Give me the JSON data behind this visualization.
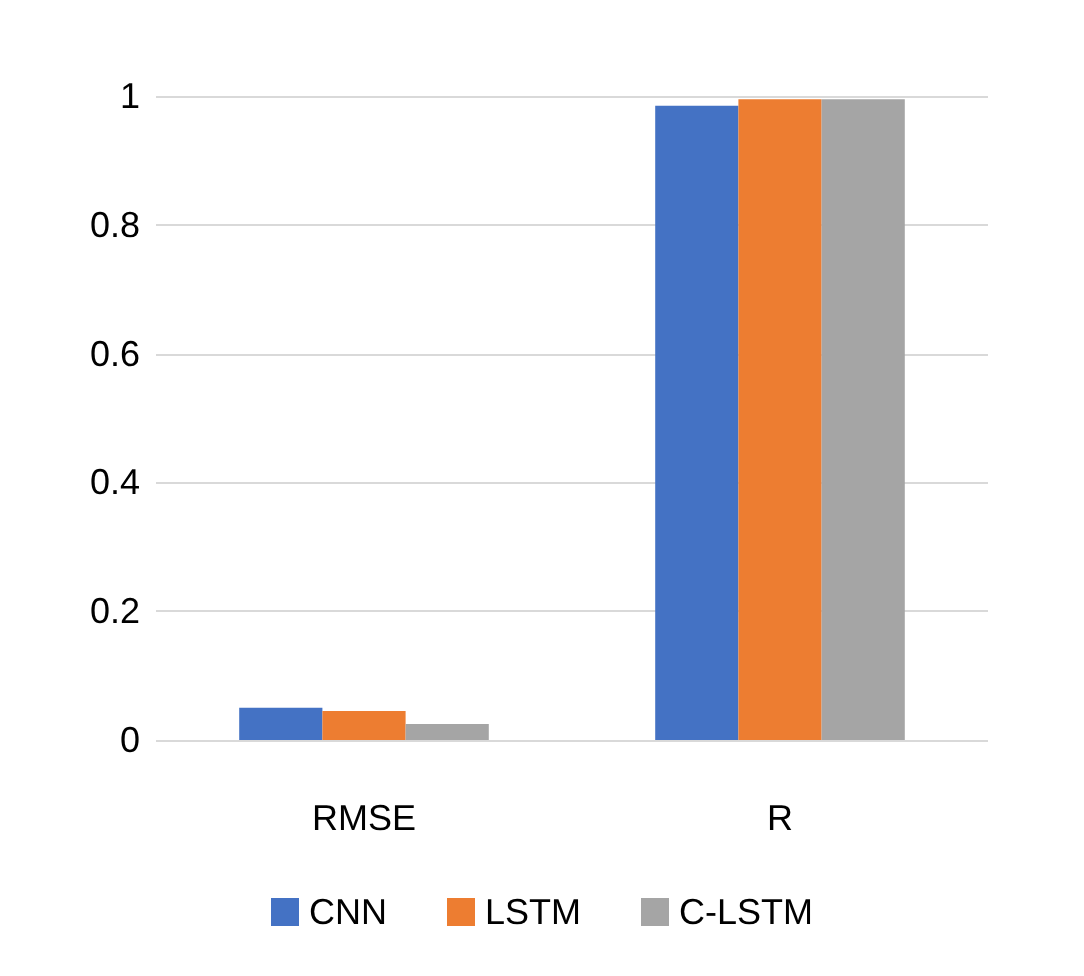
{
  "chart_data": {
    "type": "bar",
    "categories": [
      "RMSE",
      "R"
    ],
    "series": [
      {
        "name": "CNN",
        "color": "#4472c4",
        "values": [
          0.05,
          0.985
        ]
      },
      {
        "name": "LSTM",
        "color": "#ed7d31",
        "values": [
          0.045,
          0.995
        ]
      },
      {
        "name": "C-LSTM",
        "color": "#a5a5a5",
        "values": [
          0.025,
          0.995
        ]
      }
    ],
    "ylim": [
      0,
      1
    ],
    "yticks": [
      0,
      0.2,
      0.4,
      0.6,
      0.8,
      1
    ],
    "grid": "y",
    "legend": "bottom"
  }
}
